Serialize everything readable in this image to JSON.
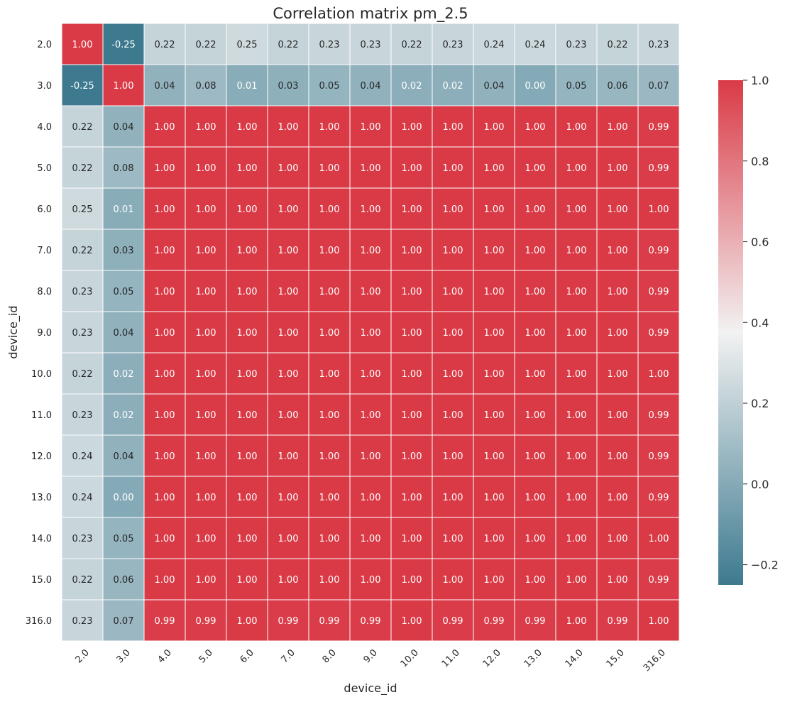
{
  "chart_data": {
    "type": "heatmap",
    "title": "Correlation matrix pm_2.5",
    "xlabel": "device_id",
    "ylabel": "device_id",
    "x_categories": [
      "2.0",
      "3.0",
      "4.0",
      "5.0",
      "6.0",
      "7.0",
      "8.0",
      "9.0",
      "10.0",
      "11.0",
      "12.0",
      "13.0",
      "14.0",
      "15.0",
      "316.0"
    ],
    "y_categories": [
      "2.0",
      "3.0",
      "4.0",
      "5.0",
      "6.0",
      "7.0",
      "8.0",
      "9.0",
      "10.0",
      "11.0",
      "12.0",
      "13.0",
      "14.0",
      "15.0",
      "316.0"
    ],
    "values": [
      [
        1.0,
        -0.25,
        0.22,
        0.22,
        0.25,
        0.22,
        0.23,
        0.23,
        0.22,
        0.23,
        0.24,
        0.24,
        0.23,
        0.22,
        0.23
      ],
      [
        -0.25,
        1.0,
        0.04,
        0.08,
        0.01,
        0.03,
        0.05,
        0.04,
        0.02,
        0.02,
        0.04,
        0.0,
        0.05,
        0.06,
        0.07
      ],
      [
        0.22,
        0.04,
        1.0,
        1.0,
        1.0,
        1.0,
        1.0,
        1.0,
        1.0,
        1.0,
        1.0,
        1.0,
        1.0,
        1.0,
        0.99
      ],
      [
        0.22,
        0.08,
        1.0,
        1.0,
        1.0,
        1.0,
        1.0,
        1.0,
        1.0,
        1.0,
        1.0,
        1.0,
        1.0,
        1.0,
        0.99
      ],
      [
        0.25,
        0.01,
        1.0,
        1.0,
        1.0,
        1.0,
        1.0,
        1.0,
        1.0,
        1.0,
        1.0,
        1.0,
        1.0,
        1.0,
        1.0
      ],
      [
        0.22,
        0.03,
        1.0,
        1.0,
        1.0,
        1.0,
        1.0,
        1.0,
        1.0,
        1.0,
        1.0,
        1.0,
        1.0,
        1.0,
        0.99
      ],
      [
        0.23,
        0.05,
        1.0,
        1.0,
        1.0,
        1.0,
        1.0,
        1.0,
        1.0,
        1.0,
        1.0,
        1.0,
        1.0,
        1.0,
        0.99
      ],
      [
        0.23,
        0.04,
        1.0,
        1.0,
        1.0,
        1.0,
        1.0,
        1.0,
        1.0,
        1.0,
        1.0,
        1.0,
        1.0,
        1.0,
        0.99
      ],
      [
        0.22,
        0.02,
        1.0,
        1.0,
        1.0,
        1.0,
        1.0,
        1.0,
        1.0,
        1.0,
        1.0,
        1.0,
        1.0,
        1.0,
        1.0
      ],
      [
        0.23,
        0.02,
        1.0,
        1.0,
        1.0,
        1.0,
        1.0,
        1.0,
        1.0,
        1.0,
        1.0,
        1.0,
        1.0,
        1.0,
        0.99
      ],
      [
        0.24,
        0.04,
        1.0,
        1.0,
        1.0,
        1.0,
        1.0,
        1.0,
        1.0,
        1.0,
        1.0,
        1.0,
        1.0,
        1.0,
        0.99
      ],
      [
        0.24,
        0.0,
        1.0,
        1.0,
        1.0,
        1.0,
        1.0,
        1.0,
        1.0,
        1.0,
        1.0,
        1.0,
        1.0,
        1.0,
        0.99
      ],
      [
        0.23,
        0.05,
        1.0,
        1.0,
        1.0,
        1.0,
        1.0,
        1.0,
        1.0,
        1.0,
        1.0,
        1.0,
        1.0,
        1.0,
        1.0
      ],
      [
        0.22,
        0.06,
        1.0,
        1.0,
        1.0,
        1.0,
        1.0,
        1.0,
        1.0,
        1.0,
        1.0,
        1.0,
        1.0,
        1.0,
        0.99
      ],
      [
        0.23,
        0.07,
        0.99,
        0.99,
        1.0,
        0.99,
        0.99,
        0.99,
        1.0,
        0.99,
        0.99,
        0.99,
        1.0,
        0.99,
        1.0
      ]
    ],
    "colorbar": {
      "min": -0.25,
      "max": 1.0,
      "ticks": [
        -0.2,
        0.0,
        0.2,
        0.4,
        0.6,
        0.8,
        1.0
      ],
      "tick_labels": [
        "−0.2",
        "0.0",
        "0.2",
        "0.4",
        "0.6",
        "0.8",
        "1.0"
      ],
      "colors": [
        "#3d7a8f",
        "#f2f2f2",
        "#da3a46"
      ]
    },
    "annotations_format": "0.00",
    "grid_lines": "white"
  }
}
